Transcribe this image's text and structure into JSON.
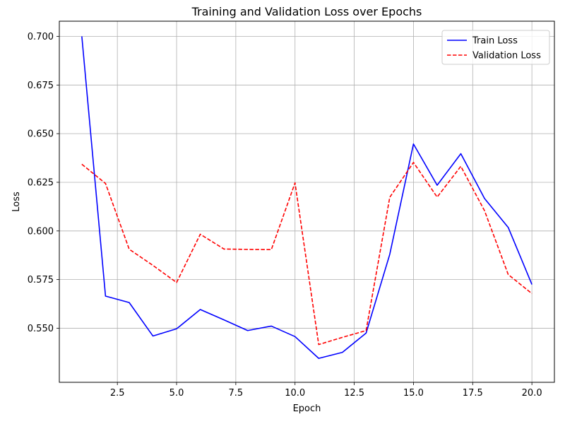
{
  "chart_data": {
    "type": "line",
    "title": "Training and Validation Loss over Epochs",
    "xlabel": "Epoch",
    "ylabel": "Loss",
    "xlim": [
      0.05,
      20.95
    ],
    "ylim": [
      0.5222,
      0.7078
    ],
    "xticks": [
      "2.5",
      "5.0",
      "7.5",
      "10.0",
      "12.5",
      "15.0",
      "17.5",
      "20.0"
    ],
    "yticks": [
      "0.550",
      "0.575",
      "0.600",
      "0.625",
      "0.650",
      "0.675",
      "0.700"
    ],
    "grid": true,
    "legend_position": "top-right",
    "x": [
      1,
      2,
      3,
      4,
      5,
      6,
      7,
      8,
      9,
      10,
      11,
      12,
      13,
      14,
      15,
      16,
      17,
      18,
      19,
      20
    ],
    "series": [
      {
        "name": "Train Loss",
        "color": "#0000ff",
        "style": "solid",
        "values": [
          0.7,
          0.5665,
          0.5632,
          0.546,
          0.5497,
          0.5596,
          0.5543,
          0.5488,
          0.5511,
          0.5457,
          0.5345,
          0.5376,
          0.5475,
          0.588,
          0.6447,
          0.6235,
          0.6397,
          0.6167,
          0.6018,
          0.5725
        ]
      },
      {
        "name": "Validation Loss",
        "color": "#ff0000",
        "style": "dashed",
        "values": [
          0.6343,
          0.6244,
          0.5906,
          0.5823,
          0.5735,
          0.5983,
          0.5907,
          0.5905,
          0.5904,
          0.6247,
          0.5416,
          0.5453,
          0.5488,
          0.6173,
          0.6352,
          0.6174,
          0.6332,
          0.6104,
          0.5776,
          0.5678
        ]
      }
    ]
  }
}
